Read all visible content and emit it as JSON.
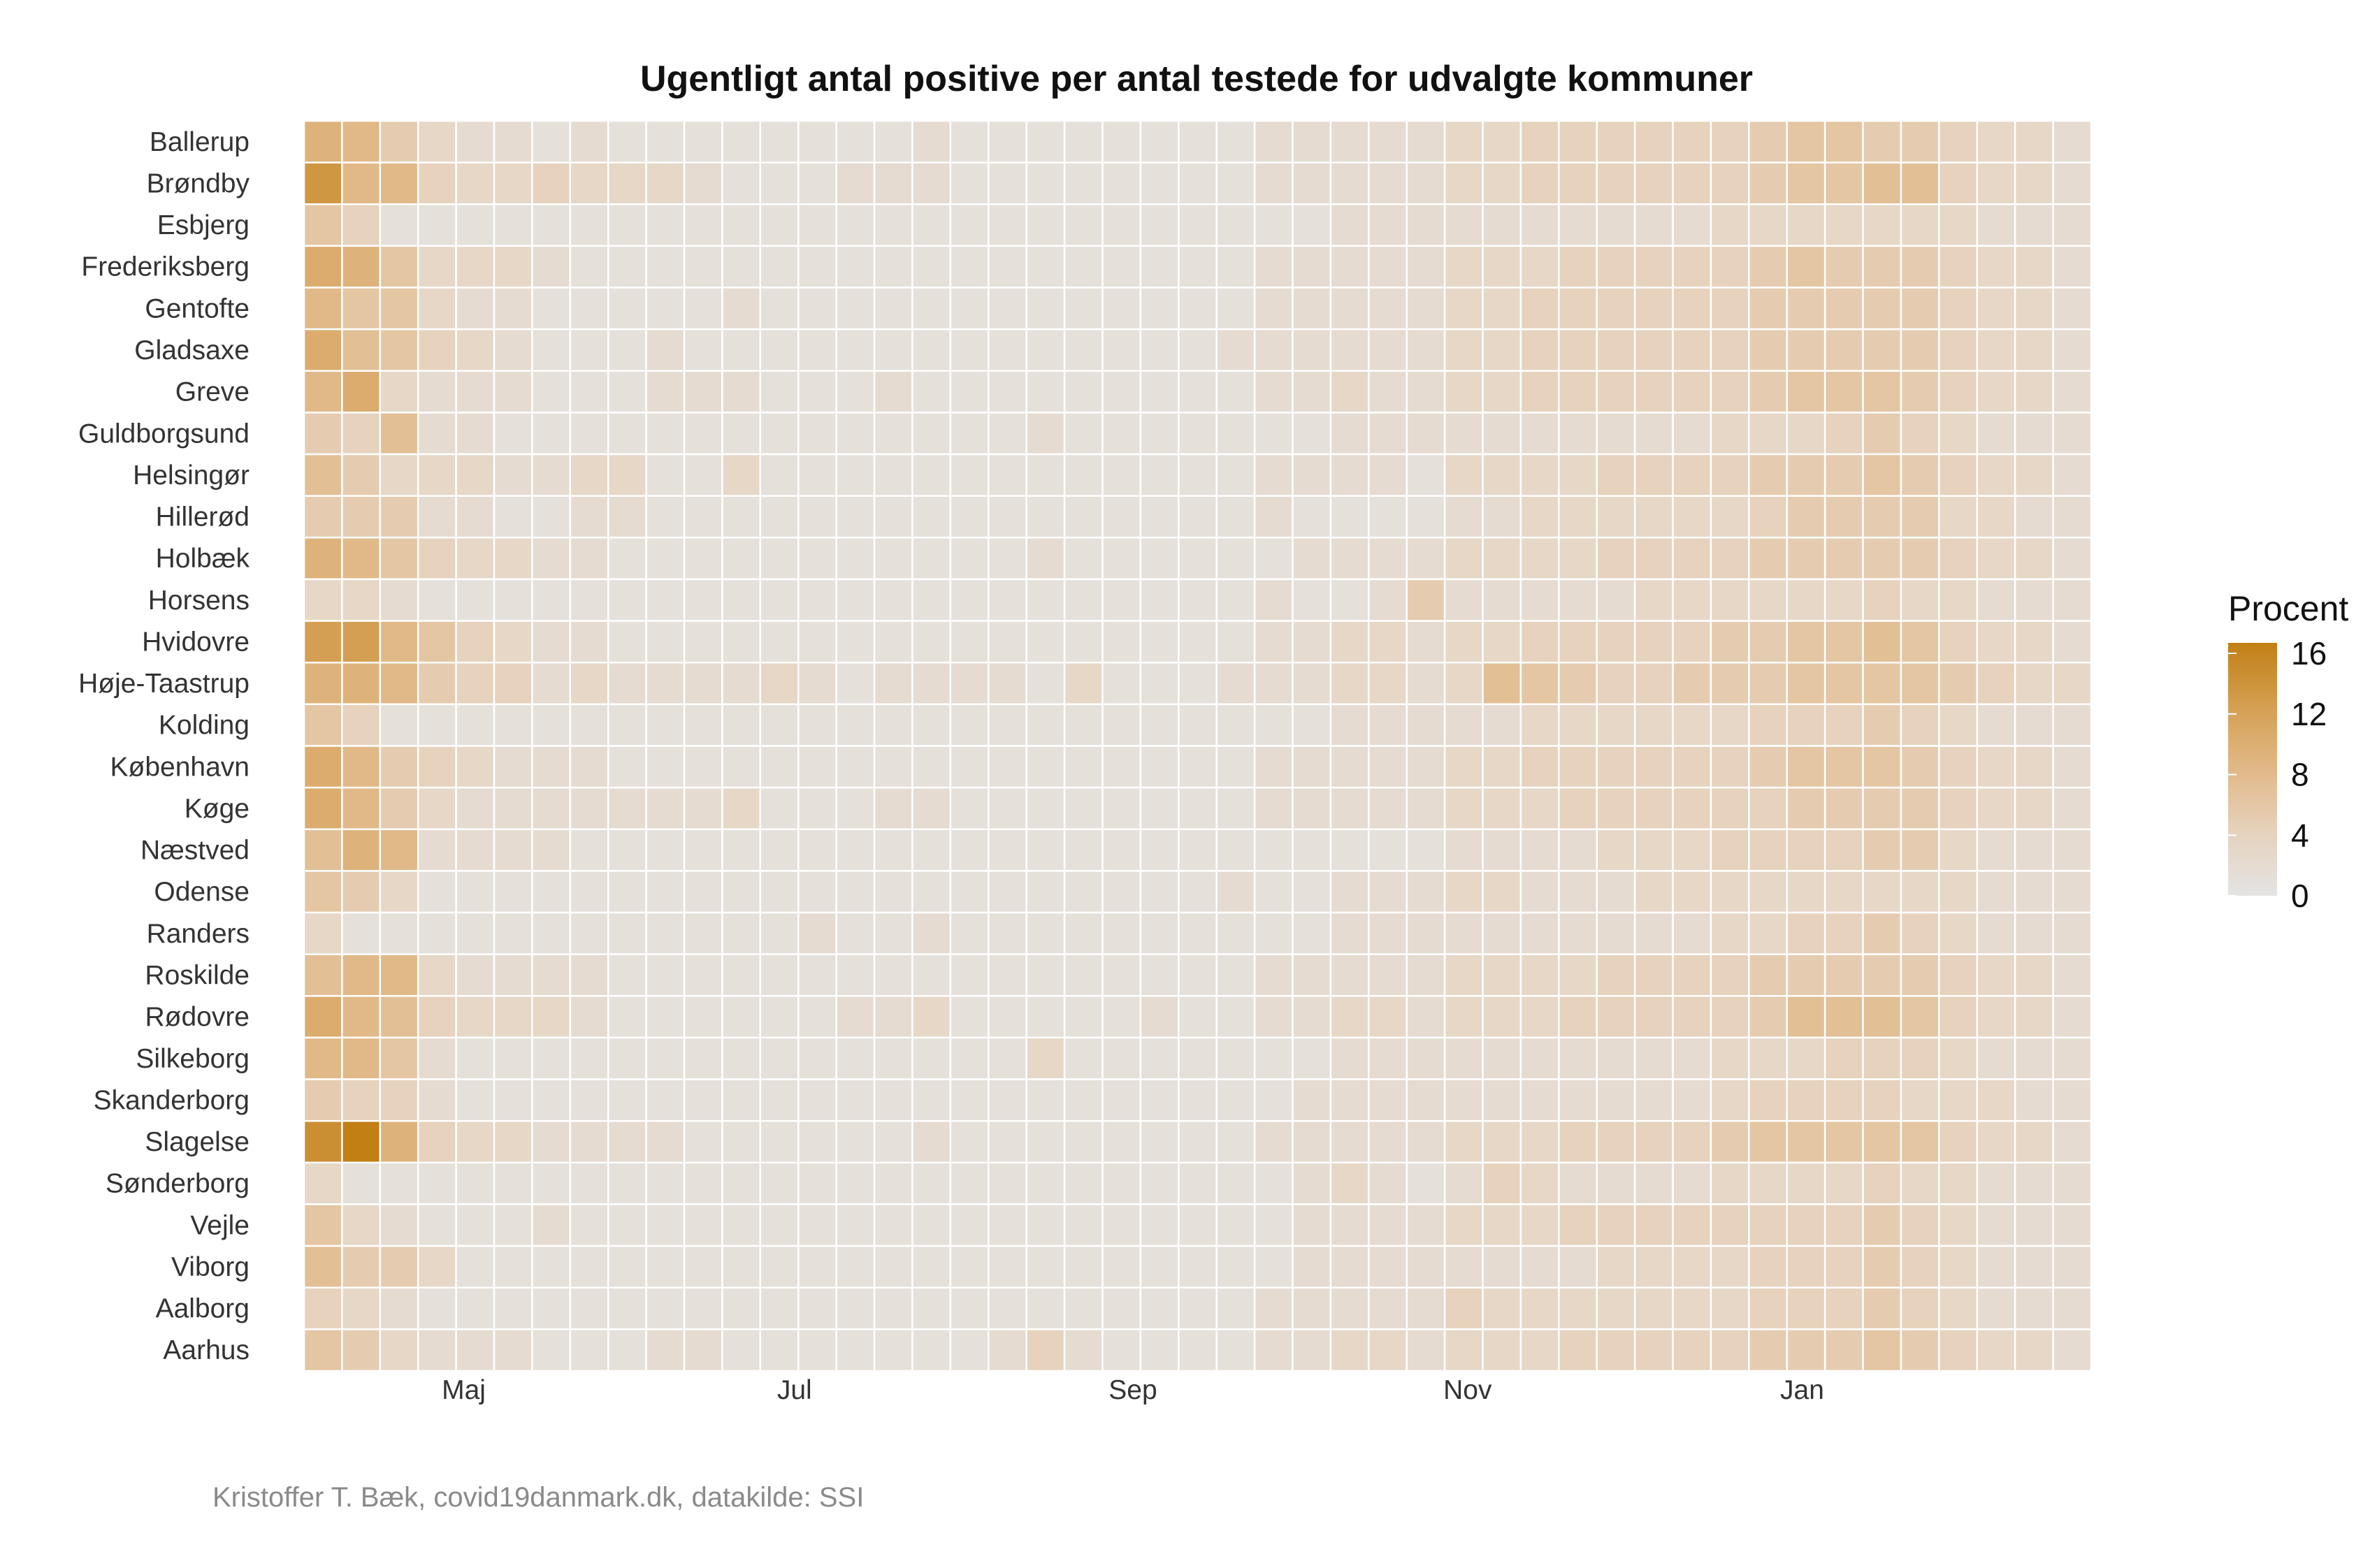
{
  "chart_data": {
    "type": "heatmap",
    "title": "Ugentligt antal positive per antal testede for udvalgte kommuner",
    "caption": "Kristoffer T. Bæk, covid19danmark.dk, datakilde: SSI",
    "legend": {
      "title": "Procent",
      "ticks": [
        "0",
        "4",
        "8",
        "12",
        "16"
      ],
      "range": [
        0,
        16
      ],
      "placement": "right",
      "color_low": "#e4e4e4",
      "color_high": "#c27f14"
    },
    "x_tick_labels": [
      {
        "label": "Maj",
        "week": 4.2
      },
      {
        "label": "Jul",
        "week": 12.9
      },
      {
        "label": "Sep",
        "week": 21.8
      },
      {
        "label": "Nov",
        "week": 30.6
      },
      {
        "label": "Jan",
        "week": 39.4
      }
    ],
    "rows": [
      "Ballerup",
      "Brøndby",
      "Esbjerg",
      "Frederiksberg",
      "Gentofte",
      "Gladsaxe",
      "Greve",
      "Guldborgsund",
      "Helsingør",
      "Hillerød",
      "Holbæk",
      "Horsens",
      "Hvidovre",
      "Høje-Taastrup",
      "Kolding",
      "København",
      "Køge",
      "Næstved",
      "Odense",
      "Randers",
      "Roskilde",
      "Rødovre",
      "Silkeborg",
      "Skanderborg",
      "Slagelse",
      "Sønderborg",
      "Vejle",
      "Viborg",
      "Aalborg",
      "Aarhus"
    ],
    "values": [
      [
        9,
        8,
        5,
        3,
        2,
        2,
        1,
        2,
        1,
        1,
        1,
        1,
        1,
        1,
        1,
        1,
        2,
        1,
        1,
        1,
        1,
        1,
        1,
        1,
        1,
        2,
        2,
        2,
        2,
        2,
        3,
        3,
        4,
        4,
        4,
        4,
        4,
        4,
        5,
        6,
        6,
        5,
        5,
        4,
        3,
        3,
        2
      ],
      [
        13,
        8,
        8,
        4,
        3,
        3,
        4,
        3,
        3,
        3,
        2,
        1,
        1,
        1,
        2,
        2,
        2,
        1,
        1,
        1,
        1,
        1,
        1,
        1,
        1,
        2,
        2,
        2,
        2,
        2,
        3,
        3,
        4,
        4,
        4,
        4,
        4,
        4,
        5,
        6,
        6,
        7,
        7,
        4,
        3,
        3,
        2
      ],
      [
        6,
        4,
        1,
        1,
        1,
        1,
        1,
        1,
        1,
        1,
        1,
        1,
        1,
        1,
        1,
        1,
        1,
        1,
        1,
        1,
        1,
        1,
        1,
        1,
        1,
        1,
        1,
        2,
        2,
        2,
        2,
        2,
        2,
        2,
        2,
        2,
        2,
        3,
        3,
        3,
        3,
        3,
        3,
        3,
        2,
        2,
        2
      ],
      [
        10,
        9,
        6,
        3,
        3,
        3,
        2,
        1,
        1,
        1,
        1,
        1,
        1,
        1,
        1,
        1,
        1,
        1,
        1,
        1,
        1,
        1,
        1,
        1,
        1,
        2,
        2,
        2,
        2,
        2,
        3,
        3,
        3,
        4,
        4,
        4,
        4,
        4,
        5,
        6,
        5,
        5,
        5,
        4,
        3,
        3,
        2
      ],
      [
        8,
        6,
        6,
        3,
        2,
        2,
        1,
        1,
        1,
        1,
        1,
        2,
        1,
        1,
        1,
        1,
        1,
        1,
        1,
        1,
        1,
        1,
        1,
        1,
        1,
        2,
        2,
        2,
        2,
        2,
        3,
        3,
        4,
        4,
        4,
        4,
        4,
        4,
        5,
        5,
        5,
        5,
        5,
        4,
        3,
        3,
        2
      ],
      [
        10,
        7,
        6,
        4,
        3,
        2,
        1,
        1,
        1,
        2,
        1,
        1,
        1,
        1,
        1,
        1,
        1,
        1,
        1,
        1,
        1,
        1,
        1,
        1,
        2,
        2,
        2,
        2,
        2,
        2,
        3,
        3,
        4,
        4,
        4,
        4,
        4,
        4,
        5,
        5,
        5,
        5,
        5,
        4,
        3,
        3,
        2
      ],
      [
        8,
        10,
        3,
        2,
        2,
        2,
        1,
        1,
        1,
        2,
        2,
        2,
        1,
        1,
        1,
        2,
        1,
        1,
        1,
        1,
        1,
        1,
        1,
        1,
        1,
        2,
        2,
        3,
        2,
        2,
        3,
        3,
        4,
        4,
        4,
        4,
        4,
        4,
        5,
        6,
        6,
        6,
        5,
        4,
        3,
        3,
        2
      ],
      [
        5,
        4,
        7,
        2,
        2,
        1,
        1,
        1,
        1,
        1,
        1,
        1,
        1,
        1,
        1,
        1,
        1,
        1,
        1,
        2,
        1,
        1,
        1,
        1,
        1,
        1,
        1,
        2,
        2,
        2,
        2,
        2,
        2,
        2,
        2,
        2,
        2,
        3,
        3,
        3,
        4,
        5,
        4,
        3,
        2,
        2,
        2
      ],
      [
        7,
        5,
        3,
        3,
        3,
        2,
        2,
        3,
        3,
        1,
        1,
        3,
        1,
        1,
        1,
        1,
        1,
        1,
        1,
        1,
        1,
        1,
        1,
        1,
        1,
        2,
        2,
        2,
        2,
        1,
        3,
        3,
        3,
        3,
        4,
        4,
        4,
        4,
        5,
        5,
        5,
        6,
        5,
        4,
        3,
        3,
        2
      ],
      [
        5,
        5,
        5,
        2,
        2,
        1,
        1,
        2,
        2,
        1,
        1,
        1,
        1,
        1,
        1,
        1,
        1,
        1,
        1,
        1,
        1,
        1,
        1,
        1,
        1,
        2,
        1,
        1,
        1,
        1,
        2,
        2,
        3,
        3,
        3,
        3,
        3,
        3,
        4,
        5,
        5,
        5,
        5,
        3,
        3,
        2,
        2
      ],
      [
        9,
        8,
        6,
        4,
        3,
        3,
        2,
        2,
        1,
        1,
        1,
        1,
        1,
        1,
        1,
        1,
        1,
        1,
        1,
        2,
        1,
        1,
        1,
        1,
        1,
        1,
        2,
        2,
        2,
        2,
        3,
        3,
        3,
        3,
        4,
        4,
        4,
        4,
        5,
        5,
        5,
        5,
        5,
        4,
        3,
        3,
        2
      ],
      [
        3,
        3,
        2,
        1,
        1,
        1,
        1,
        1,
        1,
        1,
        1,
        1,
        1,
        1,
        1,
        1,
        1,
        1,
        1,
        1,
        1,
        1,
        1,
        1,
        1,
        2,
        1,
        1,
        2,
        5,
        2,
        2,
        2,
        2,
        2,
        3,
        3,
        3,
        3,
        3,
        3,
        4,
        3,
        3,
        2,
        2,
        2
      ],
      [
        12,
        12,
        8,
        6,
        4,
        3,
        2,
        2,
        1,
        1,
        1,
        1,
        1,
        1,
        1,
        1,
        1,
        1,
        1,
        1,
        1,
        1,
        1,
        1,
        1,
        2,
        2,
        3,
        3,
        2,
        3,
        3,
        4,
        4,
        4,
        4,
        4,
        5,
        5,
        6,
        6,
        7,
        6,
        4,
        3,
        3,
        2
      ],
      [
        9,
        9,
        8,
        5,
        4,
        4,
        2,
        3,
        2,
        2,
        2,
        2,
        3,
        2,
        1,
        2,
        2,
        2,
        2,
        1,
        3,
        1,
        1,
        1,
        2,
        2,
        2,
        3,
        3,
        2,
        3,
        7,
        6,
        5,
        4,
        4,
        5,
        5,
        5,
        6,
        6,
        6,
        6,
        5,
        4,
        3,
        3
      ],
      [
        6,
        4,
        1,
        1,
        1,
        1,
        1,
        1,
        1,
        1,
        1,
        1,
        1,
        1,
        1,
        1,
        1,
        1,
        1,
        1,
        1,
        1,
        1,
        1,
        1,
        1,
        1,
        2,
        2,
        2,
        2,
        2,
        3,
        3,
        3,
        3,
        3,
        3,
        4,
        4,
        4,
        5,
        4,
        3,
        2,
        2,
        2
      ],
      [
        10,
        8,
        5,
        4,
        3,
        2,
        2,
        2,
        1,
        1,
        1,
        1,
        1,
        1,
        1,
        1,
        1,
        1,
        1,
        1,
        1,
        1,
        1,
        1,
        1,
        2,
        2,
        2,
        2,
        2,
        3,
        3,
        4,
        4,
        4,
        4,
        4,
        4,
        5,
        6,
        6,
        6,
        5,
        4,
        3,
        3,
        2
      ],
      [
        10,
        8,
        5,
        3,
        2,
        2,
        2,
        2,
        2,
        2,
        2,
        3,
        1,
        1,
        1,
        2,
        2,
        1,
        1,
        1,
        1,
        1,
        1,
        1,
        1,
        2,
        2,
        2,
        2,
        2,
        3,
        3,
        3,
        4,
        4,
        4,
        4,
        4,
        4,
        5,
        5,
        5,
        5,
        4,
        3,
        3,
        2
      ],
      [
        7,
        9,
        8,
        2,
        2,
        2,
        2,
        1,
        1,
        1,
        1,
        1,
        1,
        1,
        1,
        1,
        1,
        1,
        1,
        1,
        1,
        1,
        1,
        1,
        1,
        1,
        1,
        1,
        1,
        1,
        2,
        2,
        2,
        2,
        3,
        3,
        3,
        4,
        4,
        4,
        4,
        5,
        5,
        3,
        2,
        2,
        2
      ],
      [
        6,
        5,
        3,
        1,
        1,
        1,
        1,
        1,
        1,
        1,
        1,
        1,
        1,
        1,
        1,
        1,
        1,
        1,
        1,
        1,
        1,
        1,
        1,
        1,
        2,
        1,
        1,
        2,
        2,
        2,
        3,
        3,
        2,
        2,
        2,
        3,
        3,
        3,
        3,
        3,
        3,
        3,
        3,
        3,
        2,
        2,
        2
      ],
      [
        3,
        1,
        1,
        1,
        1,
        1,
        1,
        1,
        1,
        1,
        1,
        1,
        1,
        2,
        1,
        1,
        2,
        1,
        1,
        1,
        1,
        1,
        1,
        1,
        1,
        1,
        1,
        2,
        2,
        2,
        2,
        2,
        2,
        2,
        2,
        2,
        2,
        3,
        3,
        4,
        4,
        5,
        4,
        3,
        2,
        2,
        2
      ],
      [
        7,
        8,
        8,
        3,
        2,
        2,
        2,
        2,
        1,
        1,
        1,
        1,
        1,
        1,
        1,
        1,
        1,
        1,
        1,
        1,
        1,
        1,
        1,
        1,
        1,
        2,
        2,
        2,
        2,
        2,
        3,
        3,
        3,
        3,
        4,
        4,
        4,
        4,
        5,
        5,
        5,
        5,
        5,
        4,
        3,
        3,
        2
      ],
      [
        10,
        8,
        7,
        4,
        3,
        3,
        3,
        2,
        1,
        1,
        1,
        1,
        1,
        1,
        2,
        2,
        3,
        1,
        1,
        1,
        1,
        1,
        2,
        1,
        1,
        2,
        2,
        3,
        3,
        2,
        3,
        3,
        3,
        4,
        4,
        4,
        4,
        4,
        5,
        7,
        7,
        7,
        6,
        4,
        3,
        3,
        2
      ],
      [
        8,
        8,
        6,
        2,
        1,
        1,
        1,
        1,
        1,
        1,
        1,
        1,
        1,
        1,
        1,
        1,
        1,
        1,
        1,
        3,
        1,
        1,
        1,
        1,
        1,
        1,
        1,
        2,
        2,
        2,
        2,
        2,
        2,
        2,
        2,
        2,
        2,
        3,
        3,
        3,
        4,
        4,
        4,
        3,
        2,
        2,
        2
      ],
      [
        5,
        4,
        4,
        2,
        1,
        1,
        1,
        1,
        1,
        1,
        1,
        1,
        1,
        1,
        1,
        1,
        1,
        1,
        1,
        1,
        1,
        1,
        1,
        1,
        1,
        1,
        2,
        2,
        2,
        2,
        2,
        2,
        2,
        2,
        2,
        2,
        2,
        3,
        4,
        4,
        4,
        4,
        3,
        3,
        3,
        2,
        2
      ],
      [
        14,
        16,
        9,
        4,
        3,
        3,
        2,
        2,
        2,
        2,
        1,
        1,
        1,
        1,
        1,
        1,
        2,
        1,
        1,
        1,
        1,
        1,
        1,
        1,
        1,
        2,
        2,
        2,
        2,
        2,
        3,
        3,
        3,
        4,
        4,
        4,
        4,
        5,
        6,
        6,
        6,
        6,
        6,
        4,
        3,
        3,
        2
      ],
      [
        3,
        1,
        1,
        1,
        1,
        1,
        1,
        1,
        1,
        1,
        1,
        1,
        1,
        1,
        1,
        1,
        1,
        1,
        1,
        1,
        1,
        1,
        1,
        1,
        1,
        1,
        2,
        3,
        2,
        1,
        2,
        4,
        3,
        2,
        2,
        2,
        2,
        3,
        3,
        3,
        3,
        4,
        3,
        3,
        2,
        2,
        2
      ],
      [
        6,
        3,
        2,
        1,
        1,
        1,
        2,
        1,
        1,
        1,
        1,
        1,
        1,
        1,
        1,
        1,
        1,
        1,
        1,
        1,
        1,
        1,
        1,
        1,
        1,
        1,
        2,
        2,
        2,
        2,
        3,
        3,
        3,
        4,
        4,
        4,
        4,
        4,
        4,
        4,
        4,
        5,
        4,
        3,
        2,
        2,
        2
      ],
      [
        7,
        5,
        5,
        3,
        1,
        1,
        1,
        1,
        1,
        1,
        1,
        1,
        1,
        1,
        1,
        1,
        1,
        1,
        1,
        1,
        1,
        1,
        1,
        1,
        1,
        1,
        2,
        2,
        2,
        2,
        2,
        2,
        2,
        2,
        3,
        3,
        3,
        3,
        4,
        4,
        4,
        5,
        4,
        3,
        2,
        2,
        2
      ],
      [
        4,
        3,
        2,
        1,
        1,
        1,
        1,
        1,
        1,
        1,
        1,
        1,
        1,
        1,
        1,
        1,
        1,
        1,
        1,
        1,
        1,
        1,
        1,
        1,
        1,
        2,
        2,
        2,
        2,
        2,
        4,
        3,
        3,
        3,
        3,
        3,
        3,
        3,
        4,
        4,
        4,
        5,
        4,
        3,
        2,
        2,
        2
      ],
      [
        6,
        5,
        3,
        2,
        2,
        2,
        1,
        1,
        1,
        2,
        2,
        1,
        1,
        1,
        1,
        1,
        1,
        1,
        2,
        4,
        2,
        1,
        1,
        1,
        1,
        2,
        2,
        3,
        3,
        2,
        3,
        3,
        3,
        4,
        4,
        4,
        4,
        4,
        5,
        5,
        5,
        6,
        5,
        4,
        3,
        3,
        2
      ]
    ]
  }
}
